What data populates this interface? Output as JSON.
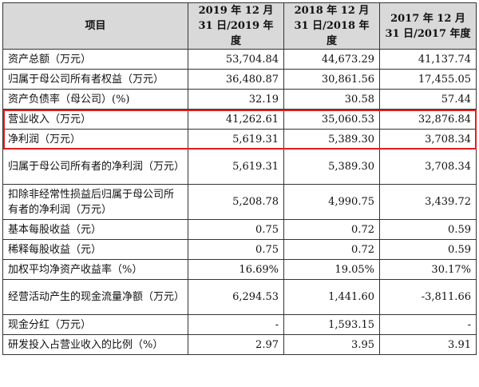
{
  "table": {
    "headers": [
      "项目",
      "2019 年 12 月 31 日/2019 年度",
      "2018 年 12 月 31 日/2018 年度",
      "2017 年 12 月 31 日/2017 年度"
    ],
    "rows": [
      {
        "label": "资产总额（万元）",
        "values": [
          "53,704.84",
          "44,673.29",
          "41,137.74"
        ]
      },
      {
        "label": "归属于母公司所有者权益（万元）",
        "values": [
          "36,480.87",
          "30,861.56",
          "17,455.05"
        ]
      },
      {
        "label": "资产负债率（母公司）(%)",
        "values": [
          "32.19",
          "30.58",
          "57.44"
        ]
      },
      {
        "label": "营业收入（万元）",
        "values": [
          "41,262.61",
          "35,060.53",
          "32,876.84"
        ]
      },
      {
        "label": "净利润（万元）",
        "values": [
          "5,619.31",
          "5,389.30",
          "3,708.34"
        ]
      },
      {
        "label": "归属于母公司所有者的净利润（万元）",
        "values": [
          "5,619.31",
          "5,389.30",
          "3,708.34"
        ]
      },
      {
        "label": "扣除非经常性损益后归属于母公司所有者的净利润（万元）",
        "values": [
          "5,208.78",
          "4,990.75",
          "3,439.72"
        ]
      },
      {
        "label": "基本每股收益（元）",
        "values": [
          "0.75",
          "0.72",
          "0.59"
        ]
      },
      {
        "label": "稀释每股收益（元）",
        "values": [
          "0.75",
          "0.72",
          "0.59"
        ]
      },
      {
        "label": "加权平均净资产收益率（%）",
        "values": [
          "16.69%",
          "19.05%",
          "30.17%"
        ]
      },
      {
        "label": "经营活动产生的现金流量净额（万元）",
        "values": [
          "6,294.53",
          "1,441.60",
          "-3,811.66"
        ]
      },
      {
        "label": "现金分红（万元）",
        "values": [
          "-",
          "1,593.15",
          "-"
        ]
      },
      {
        "label": "研发投入占营业收入的比例（%）",
        "values": [
          "2.97",
          "3.95",
          "3.91"
        ]
      }
    ]
  },
  "highlight_color": "#e02020"
}
